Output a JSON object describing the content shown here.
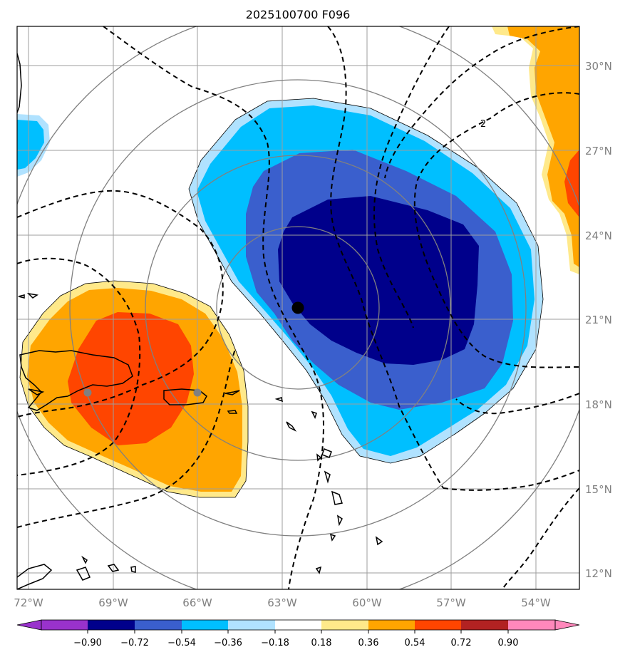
{
  "title": "2025100700 F096",
  "map": {
    "longitude_ticks": [
      "72°W",
      "69°W",
      "66°W",
      "63°W",
      "60°W",
      "57°W",
      "54°W"
    ],
    "latitude_ticks": [
      "30°N",
      "27°N",
      "24°N",
      "21°N",
      "18°N",
      "15°N",
      "12°N"
    ],
    "contour_label": "2",
    "center_marker": "storm-center",
    "reference_points": [
      "hispaniola-point",
      "puerto-rico-point"
    ]
  },
  "colorbar": {
    "labels": [
      "−0.90",
      "−0.72",
      "−0.54",
      "−0.36",
      "−0.18",
      "0.18",
      "0.36",
      "0.54",
      "0.72",
      "0.90"
    ],
    "colors": [
      "#9932cc",
      "#00008b",
      "#3a5fcd",
      "#00bfff",
      "#b0e2ff",
      "#ffffff",
      "#ffe98a",
      "#ffa500",
      "#ff4500",
      "#b22222",
      "#ff88bb"
    ]
  },
  "colors": {
    "strong_negative": "#00008b",
    "moderate_negative": "#3a5fcd",
    "weak_negative": "#00bfff",
    "faint_negative": "#b0e2ff",
    "faint_positive": "#ffe98a",
    "weak_positive": "#ffa500",
    "moderate_positive": "#ff4500"
  }
}
